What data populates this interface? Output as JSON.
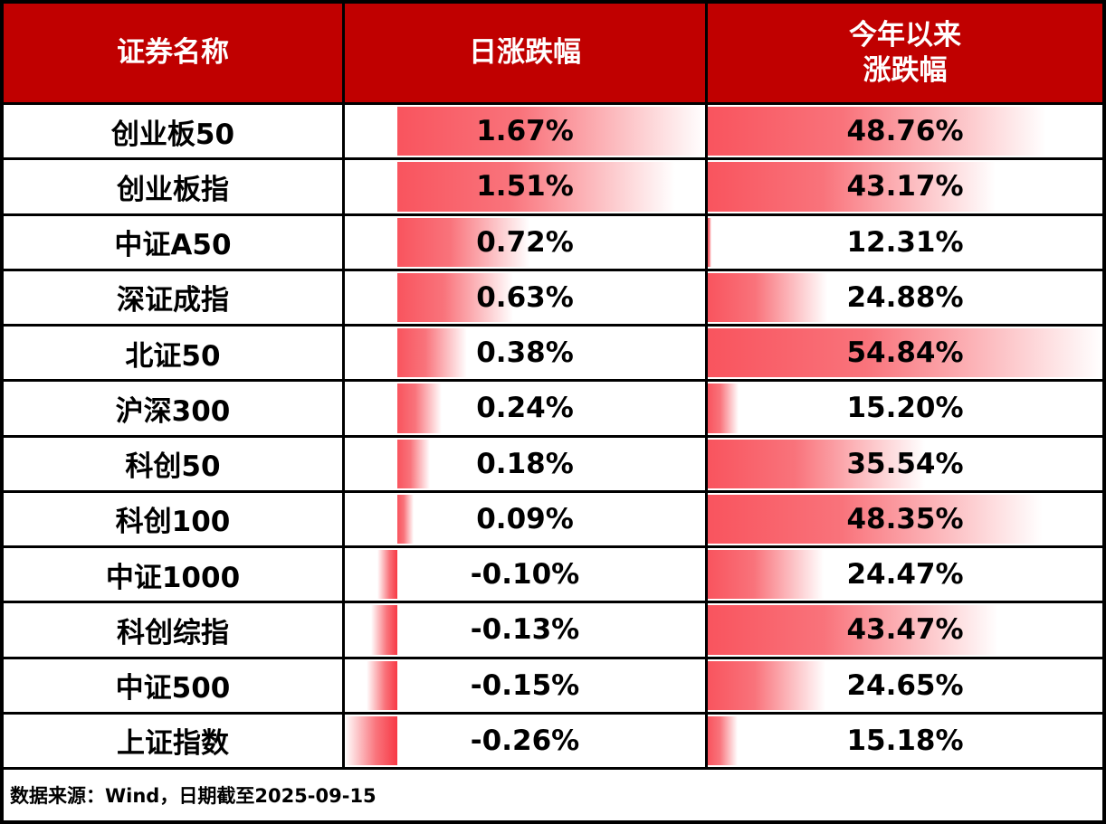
{
  "table": {
    "headers": {
      "name": "证券名称",
      "daily": "日涨跌幅",
      "ytd_line1": "今年以来",
      "ytd_line2": "涨跌幅"
    }
  },
  "chart_data": {
    "type": "table",
    "title": "",
    "columns": [
      "证券名称",
      "日涨跌幅",
      "今年以来涨跌幅"
    ],
    "rows": [
      {
        "name": "创业板50",
        "daily_pct": 1.67,
        "daily_label": "1.67%",
        "ytd_pct": 48.76,
        "ytd_label": "48.76%"
      },
      {
        "name": "创业板指",
        "daily_pct": 1.51,
        "daily_label": "1.51%",
        "ytd_pct": 43.17,
        "ytd_label": "43.17%"
      },
      {
        "name": "中证A50",
        "daily_pct": 0.72,
        "daily_label": "0.72%",
        "ytd_pct": 12.31,
        "ytd_label": "12.31%"
      },
      {
        "name": "深证成指",
        "daily_pct": 0.63,
        "daily_label": "0.63%",
        "ytd_pct": 24.88,
        "ytd_label": "24.88%"
      },
      {
        "name": "北证50",
        "daily_pct": 0.38,
        "daily_label": "0.38%",
        "ytd_pct": 54.84,
        "ytd_label": "54.84%"
      },
      {
        "name": "沪深300",
        "daily_pct": 0.24,
        "daily_label": "0.24%",
        "ytd_pct": 15.2,
        "ytd_label": "15.20%"
      },
      {
        "name": "科创50",
        "daily_pct": 0.18,
        "daily_label": "0.18%",
        "ytd_pct": 35.54,
        "ytd_label": "35.54%"
      },
      {
        "name": "科创100",
        "daily_pct": 0.09,
        "daily_label": "0.09%",
        "ytd_pct": 48.35,
        "ytd_label": "48.35%"
      },
      {
        "name": "中证1000",
        "daily_pct": -0.1,
        "daily_label": "-0.10%",
        "ytd_pct": 24.47,
        "ytd_label": "24.47%"
      },
      {
        "name": "科创综指",
        "daily_pct": -0.13,
        "daily_label": "-0.13%",
        "ytd_pct": 43.47,
        "ytd_label": "43.47%"
      },
      {
        "name": "中证500",
        "daily_pct": -0.15,
        "daily_label": "-0.15%",
        "ytd_pct": 24.65,
        "ytd_label": "24.65%"
      },
      {
        "name": "上证指数",
        "daily_pct": -0.26,
        "daily_label": "-0.26%",
        "ytd_pct": 15.18,
        "ytd_label": "15.18%"
      }
    ],
    "bar_style": "gradient-databar",
    "layout_hints": {
      "daily_axis": "zero axis offset inside daily column, negatives extend left",
      "ytd_scale": "min-max scaled (12.31 shortest sliver, 54.84 full width)"
    }
  },
  "colors": {
    "header_bg": "#c00000",
    "header_text": "#ffffff",
    "bar_red": "#f9545e",
    "border": "#000000",
    "value_text": "#000000"
  },
  "footer": {
    "text": "数据来源：Wind，日期截至2025-09-15"
  }
}
